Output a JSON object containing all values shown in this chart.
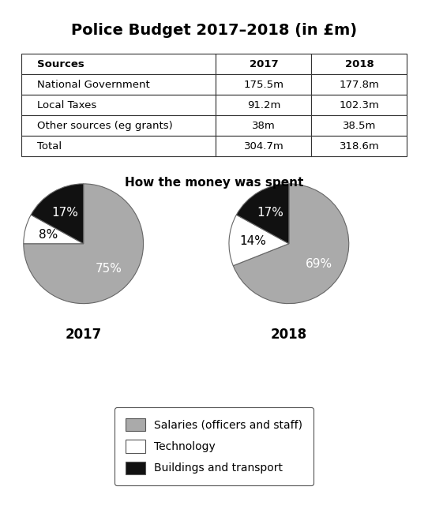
{
  "title": "Police Budget 2017–2018 (in £m)",
  "table": {
    "col_headers": [
      "Sources",
      "2017",
      "2018"
    ],
    "rows": [
      [
        "National Government",
        "175.5m",
        "177.8m"
      ],
      [
        "Local Taxes",
        "91.2m",
        "102.3m"
      ],
      [
        "Other sources (eg grants)",
        "38m",
        "38.5m"
      ],
      [
        "Total",
        "304.7m",
        "318.6m"
      ]
    ]
  },
  "pie_title": "How the money was spent",
  "pie_2017": {
    "label": "2017",
    "values": [
      75,
      8,
      17
    ],
    "labels": [
      "75%",
      "8%",
      "17%"
    ],
    "colors": [
      "#aaaaaa",
      "#ffffff",
      "#111111"
    ],
    "startangle": 90,
    "label_colors": [
      "white",
      "black",
      "white"
    ]
  },
  "pie_2018": {
    "label": "2018",
    "values": [
      69,
      14,
      17
    ],
    "labels": [
      "69%",
      "14%",
      "17%"
    ],
    "colors": [
      "#aaaaaa",
      "#ffffff",
      "#111111"
    ],
    "startangle": 90,
    "label_colors": [
      "white",
      "black",
      "white"
    ]
  },
  "legend_labels": [
    "Salaries (officers and staff)",
    "Technology",
    "Buildings and transport"
  ],
  "legend_colors": [
    "#aaaaaa",
    "#ffffff",
    "#111111"
  ],
  "bg_color": "#ffffff"
}
